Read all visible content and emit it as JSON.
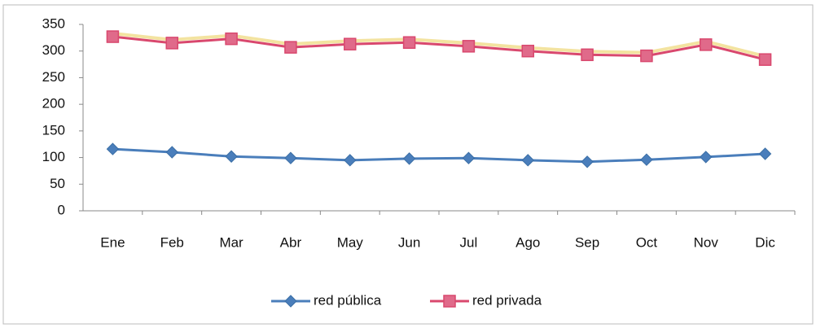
{
  "chart_data": {
    "type": "line",
    "categories": [
      "Ene",
      "Feb",
      "Mar",
      "Abr",
      "May",
      "Jun",
      "Jul",
      "Ago",
      "Sep",
      "Oct",
      "Nov",
      "Dic"
    ],
    "series": [
      {
        "name": "red pública",
        "color": "#4a7ebb",
        "values": [
          116,
          110,
          102,
          99,
          95,
          98,
          99,
          95,
          92,
          96,
          101,
          107
        ]
      },
      {
        "name": "red privada",
        "color": "#d9486e",
        "values": [
          327,
          315,
          323,
          307,
          313,
          316,
          309,
          300,
          293,
          291,
          312,
          284
        ]
      }
    ],
    "ylim": [
      0,
      350
    ],
    "yticks": [
      0,
      50,
      100,
      150,
      200,
      250,
      300,
      350
    ],
    "grid": false,
    "legend": "bottom"
  }
}
